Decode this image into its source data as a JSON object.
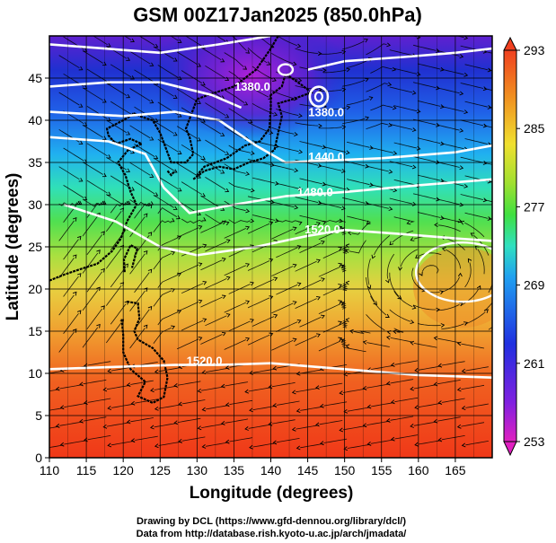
{
  "chart_data": {
    "type": "heatmap",
    "title": "GSM 00Z17Jan2025 (850.0hPa)",
    "xlabel": "Longitude (degrees)",
    "ylabel": "Latitude  (degrees)",
    "xlim": [
      110,
      170
    ],
    "ylim": [
      0,
      50
    ],
    "x_ticks": [
      "110",
      "115",
      "120",
      "125",
      "130",
      "135",
      "140",
      "145",
      "150",
      "155",
      "160",
      "165"
    ],
    "y_ticks": [
      "0",
      "5",
      "10",
      "15",
      "20",
      "25",
      "30",
      "35",
      "40",
      "45"
    ],
    "grid": true,
    "colorbar": {
      "min": 253,
      "max": 293,
      "labels": [
        "253",
        "261",
        "269",
        "277",
        "285",
        "293"
      ],
      "colors": [
        "#e020c0",
        "#8020e0",
        "#2030e0",
        "#20a0f0",
        "#30e0c0",
        "#40e040",
        "#a0e030",
        "#f0e030",
        "#f09020",
        "#f04020"
      ]
    },
    "contour_labels": [
      {
        "text": "1380.0",
        "lon": 137.5,
        "lat": 43.5
      },
      {
        "text": "1380.0",
        "lon": 147.5,
        "lat": 40.5
      },
      {
        "text": "1440.0",
        "lon": 147.5,
        "lat": 35.2
      },
      {
        "text": "1480.0",
        "lon": 146.0,
        "lat": 31.0
      },
      {
        "text": "1520.0",
        "lon": 147.0,
        "lat": 26.6
      },
      {
        "text": "1520.0",
        "lon": 131.0,
        "lat": 11.0
      }
    ],
    "fields": [
      "temperature (K)",
      "geopotential height contours",
      "wind streamlines"
    ]
  },
  "credits": {
    "line1": "Drawing by DCL (https://www.gfd-dennou.org/library/dcl/)",
    "line2": "Data from http://database.rish.kyoto-u.ac.jp/arch/jmadata/"
  }
}
